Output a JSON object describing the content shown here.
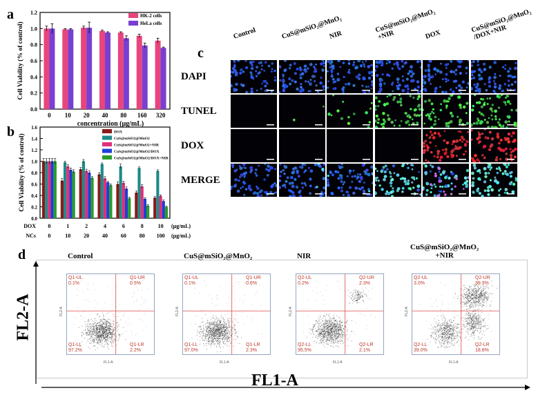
{
  "panel_a": {
    "letter": "a",
    "chart_data": {
      "type": "bar",
      "categories": [
        "0",
        "10",
        "20",
        "40",
        "80",
        "160",
        "320"
      ],
      "series": [
        {
          "name": "HK-2 cells",
          "color": "#e8457d",
          "values": [
            1.0,
            0.99,
            1.01,
            0.97,
            0.95,
            0.91,
            0.85
          ],
          "errors": [
            0.03,
            0.01,
            0.02,
            0.01,
            0.01,
            0.02,
            0.03
          ]
        },
        {
          "name": "HeLa cells",
          "color": "#7a3fd1",
          "values": [
            1.0,
            0.99,
            1.01,
            0.95,
            0.88,
            0.79,
            0.76
          ],
          "errors": [
            0.06,
            0.01,
            0.07,
            0.01,
            0.03,
            0.03,
            0.01
          ]
        }
      ],
      "ylabel": "Cell Viability (% of control)",
      "xlabel": "concentration (μg/mL)",
      "ylim": [
        0,
        1.2
      ],
      "yticks": [
        "0.0",
        "0.2",
        "0.4",
        "0.6",
        "0.8",
        "1.0",
        "1.2"
      ],
      "legend_position": "top-right"
    }
  },
  "panel_b": {
    "letter": "b",
    "chart_data": {
      "type": "bar",
      "categories": [
        "0",
        "1",
        "2",
        "4",
        "6",
        "8",
        "10"
      ],
      "series": [
        {
          "name": "DOX",
          "color": "#8b1a1a",
          "values": [
            1.0,
            0.66,
            0.86,
            0.77,
            0.6,
            0.45,
            0.36
          ],
          "errors": [
            0.05,
            0.04,
            0.03,
            0.03,
            0.04,
            0.03,
            0.02
          ]
        },
        {
          "name": "CuS@mSiO2@MnO2",
          "color": "#1f8a8a",
          "values": [
            1.0,
            0.98,
            1.0,
            0.95,
            0.91,
            0.88,
            0.83
          ],
          "errors": [
            0.05,
            0.02,
            0.03,
            0.02,
            0.04,
            0.02,
            0.02
          ]
        },
        {
          "name": "CuS@mSiO2@MnO2+NIR",
          "color": "#e0307a",
          "values": [
            1.0,
            0.91,
            0.83,
            0.7,
            0.62,
            0.56,
            0.39
          ],
          "errors": [
            0.05,
            0.03,
            0.03,
            0.03,
            0.03,
            0.03,
            0.02
          ]
        },
        {
          "name": "CuS@mSiO2@MnO2/DOX",
          "color": "#1f3fd6",
          "values": [
            1.0,
            0.85,
            0.8,
            0.63,
            0.52,
            0.34,
            0.3
          ],
          "errors": [
            0.05,
            0.03,
            0.03,
            0.02,
            0.03,
            0.02,
            0.02
          ]
        },
        {
          "name": "CuS@mSiO2@MnO2/DOX+NIR",
          "color": "#2a9c2a",
          "values": [
            1.0,
            0.82,
            0.71,
            0.58,
            0.35,
            0.22,
            0.2
          ],
          "errors": [
            0.05,
            0.03,
            0.02,
            0.02,
            0.02,
            0.02,
            0.01
          ]
        }
      ],
      "ylabel": "Cell Viability (% of control)",
      "ylim": [
        0,
        1.6
      ],
      "yticks": [
        "0.0",
        "0.2",
        "0.4",
        "0.6",
        "0.8",
        "1.0",
        "1.2",
        "1.4",
        "1.6"
      ],
      "x_rows": [
        {
          "label": "DOX",
          "values": [
            "0",
            "1",
            "2",
            "4",
            "6",
            "8",
            "10"
          ],
          "unit": "(μg/mL)"
        },
        {
          "label": "NCs",
          "values": [
            "0",
            "10",
            "20",
            "40",
            "60",
            "80",
            "100"
          ],
          "unit": "(μg/mL)"
        }
      ],
      "legend_position": "top-right"
    }
  },
  "panel_c": {
    "letter": "c",
    "columns": [
      "Control",
      "CuS@mSiO₂@MnO₂",
      "NIR",
      "CuS@mSiO₂@MnO₂\n+NIR",
      "DOX",
      "CuS@mSiO₂@MnO₂\n/DOX+NIR"
    ],
    "rows": [
      "DAPI",
      "TUNEL",
      "DOX",
      "MERGE"
    ]
  },
  "panel_d": {
    "letter": "d",
    "y_axis_label": "FL2-A",
    "x_axis_label": "FL1-A",
    "plots": [
      {
        "title": "Control",
        "ul_name": "Q1-UL",
        "ul": "0.1%",
        "ur_name": "Q1-UR",
        "ur": "0.5%",
        "ll_name": "Q1-LL",
        "ll": "97.2%",
        "lr_name": "Q1-LR",
        "lr": "2.2%"
      },
      {
        "title": "CuS@mSiO₂@MnO₂",
        "ul_name": "Q1-UL",
        "ul": "0.1%",
        "ur_name": "Q1-UR",
        "ur": "0.6%",
        "ll_name": "Q1-LL",
        "ll": "97.0%",
        "lr_name": "Q1-LR",
        "lr": "2.3%"
      },
      {
        "title": "NIR",
        "ul_name": "Q2-UL",
        "ul": "0.2%",
        "ur_name": "Q2-UR",
        "ur": "2.3%",
        "ll_name": "Q2-LL",
        "ll": "95.5%",
        "lr_name": "Q2-LR",
        "lr": "2.1%"
      },
      {
        "title": "CuS@mSiO₂@MnO₂\n+NIR",
        "ul_name": "Q2-UL",
        "ul": "3.0%",
        "ur_name": "Q2-UR",
        "ur": "39.3%",
        "ll_name": "Q2-LL",
        "ll": "39.0%",
        "lr_name": "Q2-LR",
        "lr": "18.8%"
      }
    ],
    "inner_x_label": "FL1-A",
    "inner_y_label": "FL2-A"
  }
}
